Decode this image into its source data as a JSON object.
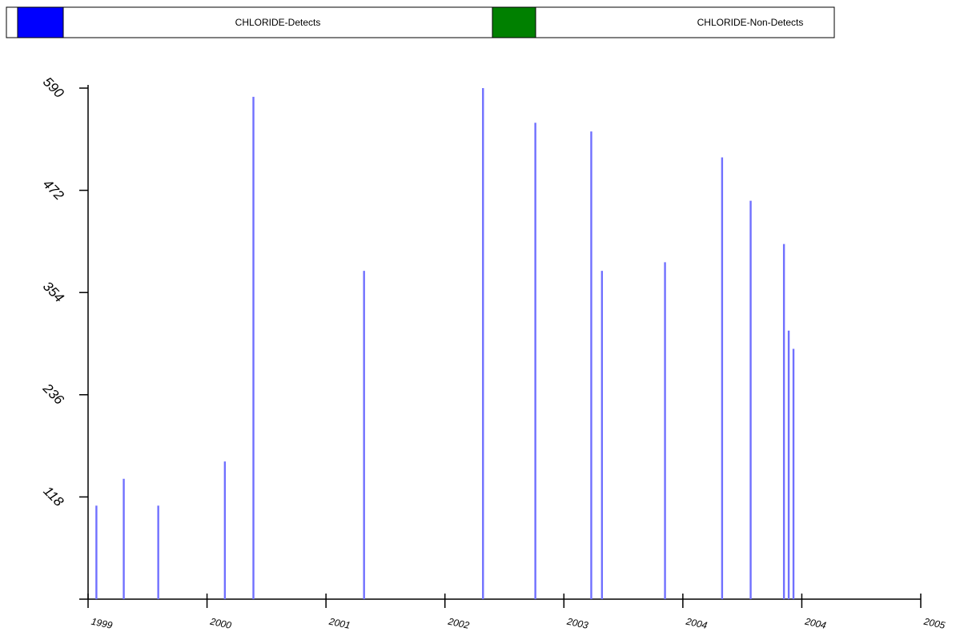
{
  "chart_data": {
    "type": "bar",
    "title": "",
    "xlabel": "",
    "ylabel": "",
    "legend": {
      "placement": "top",
      "entries": [
        {
          "label": "CHLORIDE-Detects",
          "color": "#0000ff"
        },
        {
          "label": "CHLORIDE-Non-Detects",
          "color": "#008000"
        }
      ]
    },
    "bar_color": "#7070ff",
    "grid": false,
    "ylim": [
      0,
      590
    ],
    "yticks": [
      118,
      236,
      354,
      472,
      590
    ],
    "ytick_labels": [
      "118",
      "236",
      "354",
      "472",
      "590"
    ],
    "xlim": [
      1999.0,
      2006.0
    ],
    "xtick_labels": [
      "1999",
      "2000",
      "2001",
      "2002",
      "2003",
      "2004",
      "2004",
      "2005"
    ],
    "series": [
      {
        "name": "CHLORIDE-Detects",
        "x": [
          1999.07,
          1999.3,
          1999.59,
          2000.15,
          2000.39,
          2001.32,
          2002.32,
          2002.76,
          2003.23,
          2003.32,
          2003.85,
          2004.33,
          2004.57,
          2004.85,
          2004.89,
          2004.93
        ],
        "values": [
          108,
          139,
          108,
          159,
          580,
          379,
          590,
          550,
          540,
          379,
          389,
          510,
          460,
          410,
          310,
          289
        ]
      },
      {
        "name": "CHLORIDE-Non-Detects",
        "x": [],
        "values": []
      }
    ]
  }
}
